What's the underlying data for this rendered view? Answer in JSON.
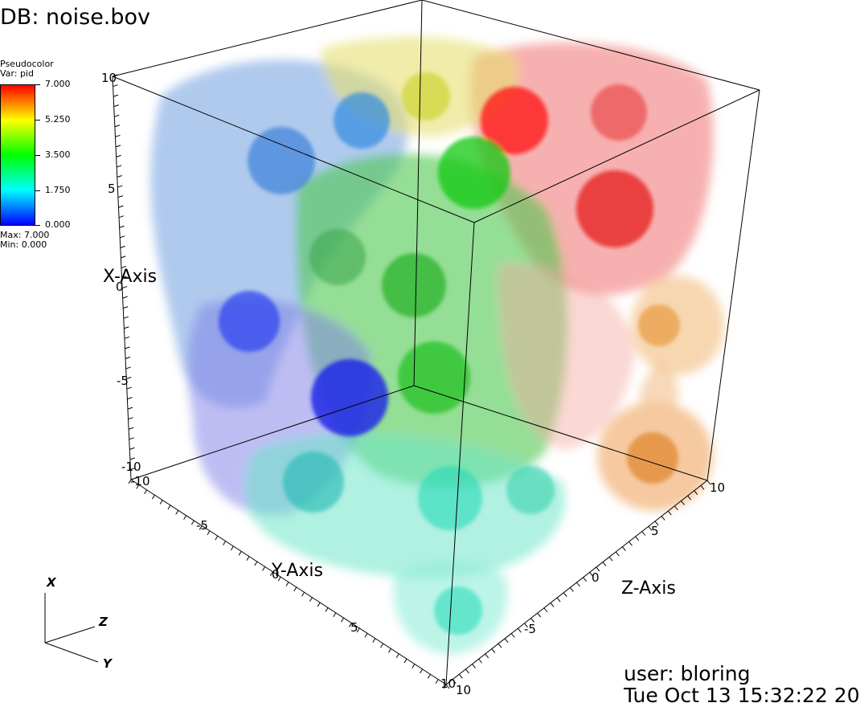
{
  "header": {
    "db_label": "DB: noise.bov"
  },
  "legend": {
    "plot_type": "Pseudocolor",
    "var_label": "Var: pid",
    "ticks": [
      "7.000",
      "5.250",
      "3.500",
      "1.750",
      "0.000"
    ],
    "max_label": "Max:  7.000",
    "min_label": "Min:  0.000",
    "colors": [
      "#ff0000",
      "#ffff00",
      "#00ff00",
      "#00ffff",
      "#0000ff"
    ]
  },
  "axes": {
    "x_title": "X-Axis",
    "y_title": "Y-Axis",
    "z_title": "Z-Axis",
    "x_ticks": [
      "10",
      "5",
      "0",
      "-5",
      "-10"
    ],
    "y_ticks": [
      "-10",
      "-5",
      "0",
      "5",
      "10"
    ],
    "z_ticks": [
      "10",
      "5",
      "0",
      "-5",
      "10"
    ]
  },
  "triad": {
    "x": "X",
    "y": "Y",
    "z": "Z"
  },
  "footer": {
    "user": "user: bloring",
    "date": "Tue Oct 13 15:32:22 20"
  }
}
